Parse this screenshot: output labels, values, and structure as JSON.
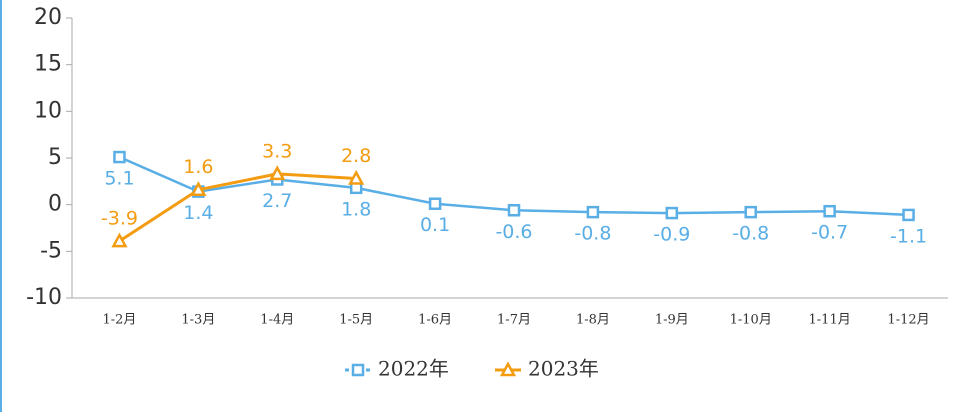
{
  "chart_data": {
    "type": "line",
    "categories": [
      "1-2月",
      "1-3月",
      "1-4月",
      "1-5月",
      "1-6月",
      "1-7月",
      "1-8月",
      "1-9月",
      "1-10月",
      "1-11月",
      "1-12月"
    ],
    "series": [
      {
        "name": "2022年",
        "color": "#5aaee6",
        "marker": "square",
        "values": [
          5.1,
          1.4,
          2.7,
          1.8,
          0.1,
          -0.6,
          -0.8,
          -0.9,
          -0.8,
          -0.7,
          -1.1
        ]
      },
      {
        "name": "2023年",
        "color": "#f39c12",
        "marker": "triangle",
        "values": [
          -3.9,
          1.6,
          3.3,
          2.8,
          null,
          null,
          null,
          null,
          null,
          null,
          null
        ]
      }
    ],
    "ylim": [
      -10,
      20
    ],
    "yticks": [
      -10,
      -5,
      0,
      5,
      10,
      15,
      20
    ],
    "legend": "bottom"
  }
}
